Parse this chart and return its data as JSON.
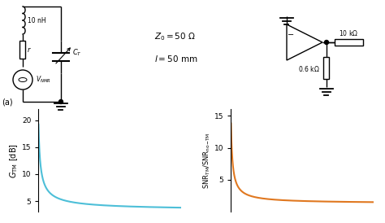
{
  "fig_width": 4.74,
  "fig_height": 2.74,
  "dpi": 100,
  "background_color": "#ffffff",
  "graph_left": {
    "color": "#4dbfd8",
    "ylabel": "$G_{\\rm TM}$ [dB]",
    "yticks": [
      5,
      10,
      15,
      20
    ],
    "ylim": [
      3,
      22
    ],
    "ylabel_fontsize": 7
  },
  "graph_right": {
    "color": "#e07820",
    "ylabel": "$\\rm SNR_{TM}/SNR_{no\\!-\\!TM}$",
    "yticks": [
      5,
      10,
      15
    ],
    "ylim": [
      0,
      16
    ],
    "ylabel_fontsize": 6
  }
}
